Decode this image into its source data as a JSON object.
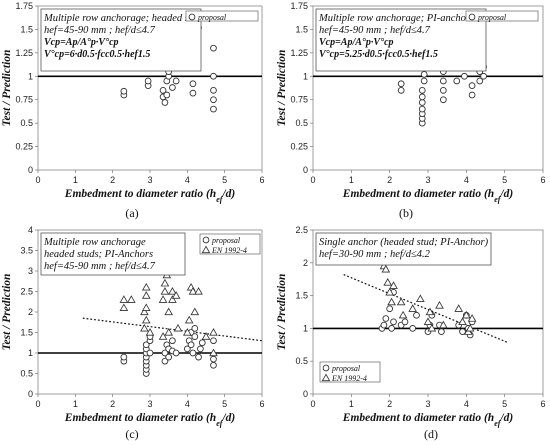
{
  "chart_data": [
    {
      "type": "scatter",
      "panel_label": "(a)",
      "xlabel": "Embedment to diameter ratio (hef/d)",
      "ylabel": "Test / Prediction",
      "xlim": [
        0,
        6
      ],
      "ylim": [
        0,
        1.75
      ],
      "xticks": [
        0,
        1,
        2,
        3,
        4,
        5,
        6
      ],
      "yticks": [
        0,
        0.25,
        0.5,
        0.75,
        1,
        1.25,
        1.5,
        1.75
      ],
      "ytick_labels": [
        "0",
        "0.25",
        "0.5",
        "0.75",
        "1",
        "1.25",
        "1.5",
        "1.75"
      ],
      "reference_line": 1,
      "annotation": [
        "Multiple row anchorage; headed studs",
        "hef=45-90 mm ; hef/d≤4.7",
        "Vcp=Ap/A°p·V°cp",
        "V°cp=6·d0.5·fcc0.5·hef1.5"
      ],
      "legend": [
        "proposal"
      ],
      "legend_position": "top-right",
      "series": [
        {
          "name": "proposal",
          "marker": "circle",
          "x": [
            2.3,
            2.3,
            2.95,
            2.95,
            3.35,
            3.35,
            3.4,
            3.45,
            3.45,
            3.5,
            3.5,
            3.55,
            3.6,
            3.6,
            3.65,
            3.7,
            4.15,
            4.15,
            4.3,
            4.7,
            4.7,
            4.7,
            4.7,
            4.7
          ],
          "y": [
            0.8,
            0.84,
            0.9,
            0.95,
            0.78,
            0.85,
            0.72,
            0.8,
            0.95,
            1.0,
            1.05,
            1.12,
            0.88,
            1.2,
            1.28,
            0.95,
            0.82,
            0.92,
            1.52,
            0.65,
            0.75,
            0.85,
            1.0,
            1.3
          ]
        }
      ]
    },
    {
      "type": "scatter",
      "panel_label": "(b)",
      "xlabel": "Embedment to diameter ratio (hef/d)",
      "ylabel": "Test / Prediction",
      "xlim": [
        0,
        6
      ],
      "ylim": [
        0,
        1.75
      ],
      "xticks": [
        0,
        1,
        2,
        3,
        4,
        5,
        6
      ],
      "yticks": [
        0,
        0.25,
        0.5,
        0.75,
        1,
        1.25,
        1.5,
        1.75
      ],
      "ytick_labels": [
        "0",
        "0.25",
        "0.5",
        "0.75",
        "1",
        "1.25",
        "1.5",
        "1.75"
      ],
      "reference_line": 1,
      "annotation": [
        "Multiple row anchorage; PI-anchors",
        "hef=45-90 mm ; hef/d≤4.7",
        "Vcp=Ap/A°p·V°cp",
        "V°cp=5.25·d0.5·fcc0.5·hef1.5"
      ],
      "legend": [
        "proposal"
      ],
      "legend_position": "top-right",
      "series": [
        {
          "name": "proposal",
          "marker": "circle",
          "x": [
            2.3,
            2.3,
            2.85,
            2.85,
            2.85,
            2.85,
            2.85,
            2.85,
            2.85,
            2.9,
            2.9,
            2.9,
            2.9,
            2.9,
            3.4,
            3.4,
            3.4,
            3.4,
            3.75,
            3.95,
            3.95,
            4.0,
            4.0,
            4.05,
            4.05,
            4.1,
            4.1,
            4.1,
            4.15,
            4.15,
            4.2,
            4.2,
            4.2,
            4.35,
            4.35,
            4.35,
            4.45,
            4.45
          ],
          "y": [
            0.85,
            0.92,
            0.5,
            0.55,
            0.6,
            0.65,
            0.72,
            0.78,
            0.85,
            0.95,
            1.02,
            1.1,
            1.2,
            1.28,
            0.75,
            0.85,
            0.95,
            1.05,
            0.95,
            1.0,
            1.3,
            1.1,
            1.35,
            1.2,
            1.45,
            1.5,
            1.58,
            1.25,
            0.8,
            0.9,
            1.1,
            1.2,
            1.35,
            0.95,
            1.05,
            1.15,
            1.0,
            1.1
          ]
        }
      ]
    },
    {
      "type": "scatter",
      "panel_label": "(c)",
      "xlabel": "Embedment to diameter ratio (hef/d)",
      "ylabel": "Test / Prediction",
      "xlim": [
        0,
        6
      ],
      "ylim": [
        0,
        4
      ],
      "xticks": [
        0,
        1,
        2,
        3,
        4,
        5,
        6
      ],
      "yticks": [
        0,
        0.5,
        1,
        1.5,
        2,
        2.5,
        3,
        3.5,
        4
      ],
      "ytick_labels": [
        "0",
        "0.5",
        "1",
        "1.5",
        "2",
        "2.5",
        "3",
        "3.5",
        "4"
      ],
      "reference_line": 1,
      "trend_line": {
        "x": [
          1.2,
          6
        ],
        "y": [
          1.85,
          1.3
        ]
      },
      "annotation": [
        "Multiple row anchorage",
        "headed studs; PI-Anchors",
        "hef=45-90 mm ; hef/d≤4.7"
      ],
      "legend": [
        "proposal",
        "EN 1992-4"
      ],
      "legend_position": "top-right",
      "series": [
        {
          "name": "proposal",
          "marker": "circle",
          "x": [
            2.3,
            2.3,
            2.9,
            2.9,
            2.9,
            2.9,
            2.9,
            2.9,
            2.9,
            2.9,
            3.0,
            3.0,
            3.0,
            3.4,
            3.4,
            3.45,
            3.5,
            3.5,
            3.6,
            3.6,
            3.7,
            4.0,
            4.05,
            4.1,
            4.1,
            4.15,
            4.2,
            4.2,
            4.3,
            4.35,
            4.4,
            4.7,
            4.7,
            4.7
          ],
          "y": [
            0.8,
            0.9,
            0.5,
            0.6,
            0.7,
            0.8,
            0.9,
            1.0,
            1.1,
            1.2,
            1.3,
            1.4,
            1.0,
            0.8,
            1.0,
            1.2,
            0.9,
            1.1,
            1.3,
            1.05,
            1.0,
            1.1,
            1.3,
            1.2,
            1.5,
            1.0,
            1.4,
            1.6,
            0.9,
            1.1,
            1.25,
            0.7,
            0.85,
            1.3
          ]
        },
        {
          "name": "EN 1992-4",
          "marker": "triangle",
          "x": [
            2.3,
            2.3,
            2.5,
            2.85,
            2.85,
            2.9,
            2.9,
            2.9,
            2.9,
            3.0,
            3.35,
            3.35,
            3.4,
            3.4,
            3.45,
            3.5,
            3.5,
            3.5,
            3.6,
            3.6,
            3.7,
            3.75,
            4.0,
            4.05,
            4.1,
            4.15,
            4.2,
            4.3,
            4.5,
            4.7,
            4.7
          ],
          "y": [
            2.1,
            2.3,
            2.3,
            1.6,
            2.0,
            2.1,
            2.4,
            2.6,
            1.8,
            1.5,
            1.4,
            2.3,
            2.5,
            2.7,
            2.9,
            3.05,
            2.0,
            1.5,
            2.3,
            2.5,
            2.4,
            1.6,
            1.5,
            1.8,
            2.6,
            2.5,
            2.0,
            2.5,
            1.4,
            1.0,
            1.5
          ]
        }
      ]
    },
    {
      "type": "scatter",
      "panel_label": "(d)",
      "xlabel": "Embedment to diameter ratio (hef/d)",
      "ylabel": "Test / Prediction",
      "xlim": [
        0,
        6
      ],
      "ylim": [
        0,
        2.5
      ],
      "xticks": [
        0,
        1,
        2,
        3,
        4,
        5,
        6
      ],
      "yticks": [
        0,
        0.5,
        1,
        1.5,
        2,
        2.5
      ],
      "ytick_labels": [
        "0",
        "0.5",
        "1",
        "1.5",
        "2",
        "2.5"
      ],
      "reference_line": 1,
      "trend_line": {
        "x": [
          0.8,
          5.1
        ],
        "y": [
          1.82,
          0.78
        ]
      },
      "annotation": [
        "Single anchor (headed stud; PI-Anchor)",
        "hef=30-90 mm ; hef/d≤4.2"
      ],
      "legend": [
        "proposal",
        "EN 1992-4"
      ],
      "legend_position": "bottom-left",
      "series": [
        {
          "name": "proposal",
          "marker": "circle",
          "x": [
            1.8,
            1.85,
            1.9,
            2.0,
            2.05,
            2.1,
            2.1,
            2.3,
            2.4,
            2.6,
            2.7,
            3.0,
            3.05,
            3.1,
            3.3,
            3.35,
            3.8,
            3.9,
            4.0,
            4.05,
            4.1,
            4.15
          ],
          "y": [
            1.0,
            1.05,
            1.15,
            1.3,
            1.0,
            1.1,
            1.55,
            1.05,
            1.1,
            1.0,
            1.2,
            0.95,
            1.05,
            1.2,
            1.05,
            0.95,
            1.05,
            0.95,
            1.2,
            1.0,
            0.9,
            1.1
          ]
        },
        {
          "name": "EN 1992-4",
          "marker": "triangle",
          "x": [
            1.8,
            1.85,
            1.9,
            1.95,
            2.0,
            2.05,
            2.1,
            2.3,
            2.35,
            2.6,
            2.8,
            3.0,
            3.05,
            3.1,
            3.3,
            3.4,
            3.8,
            3.9,
            4.0,
            4.05,
            4.1,
            4.15
          ],
          "y": [
            2.1,
            1.95,
            1.9,
            1.7,
            1.55,
            1.4,
            1.65,
            1.4,
            1.2,
            1.3,
            1.45,
            1.1,
            1.25,
            1.0,
            1.35,
            1.05,
            1.3,
            1.1,
            1.2,
            0.95,
            1.0,
            1.15
          ]
        }
      ]
    }
  ]
}
